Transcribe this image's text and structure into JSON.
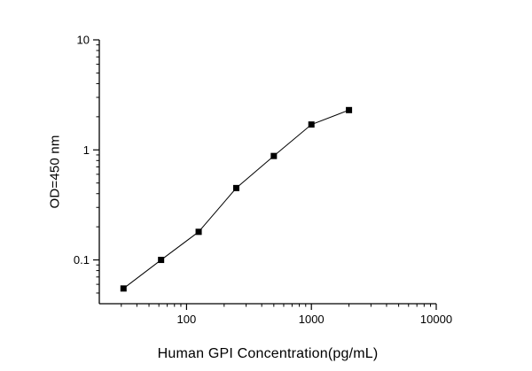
{
  "chart": {
    "xlabel": "Human GPI Concentration(pg/mL)",
    "ylabel": "OD=450 nm"
  },
  "chart_data": {
    "type": "line",
    "title": "",
    "xlabel": "Human GPI Concentration(pg/mL)",
    "ylabel": "OD=450 nm",
    "x_scale": "log",
    "y_scale": "log",
    "x": [
      31.25,
      62.5,
      125,
      250,
      500,
      1000,
      2000
    ],
    "y": [
      0.055,
      0.1,
      0.18,
      0.45,
      0.88,
      1.7,
      2.3
    ],
    "xlim": [
      20,
      10000
    ],
    "ylim": [
      0.04,
      10
    ],
    "x_major_ticks": [
      100,
      1000,
      10000
    ],
    "y_major_ticks": [
      0.1,
      1,
      10
    ],
    "grid": false,
    "legend": null,
    "marker": "square",
    "marker_color": "#000000",
    "line_color": "#000000",
    "axis_color": "#000000"
  }
}
